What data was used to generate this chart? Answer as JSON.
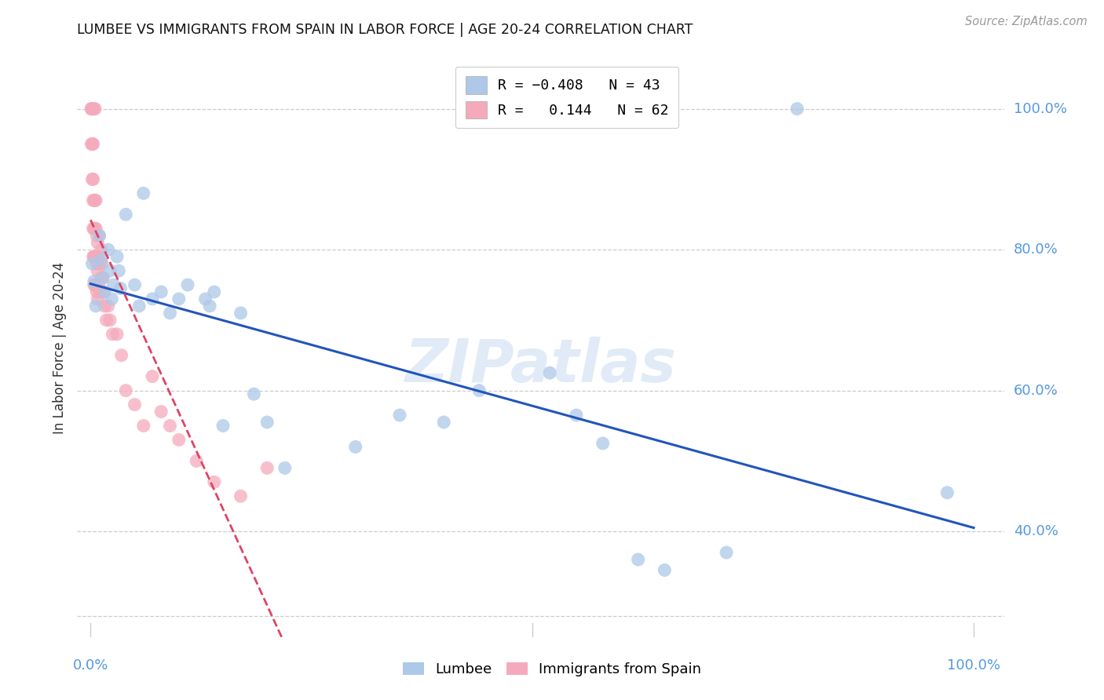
{
  "title": "LUMBEE VS IMMIGRANTS FROM SPAIN IN LABOR FORCE | AGE 20-24 CORRELATION CHART",
  "source": "Source: ZipAtlas.com",
  "ylabel": "In Labor Force | Age 20-24",
  "lumbee_R": -0.408,
  "lumbee_N": 43,
  "spain_R": 0.144,
  "spain_N": 62,
  "lumbee_color": "#adc8e8",
  "spain_color": "#f5aabb",
  "lumbee_line_color": "#2255bb",
  "spain_line_color": "#dd4466",
  "watermark": "ZIPatlas",
  "ytick_labels": [
    "40.0%",
    "60.0%",
    "80.0%",
    "100.0%"
  ],
  "ytick_values": [
    0.4,
    0.6,
    0.8,
    1.0
  ],
  "lumbee_x": [
    0.002,
    0.004,
    0.006,
    0.01,
    0.012,
    0.014,
    0.016,
    0.02,
    0.022,
    0.024,
    0.026,
    0.03,
    0.032,
    0.034,
    0.04,
    0.05,
    0.055,
    0.06,
    0.07,
    0.08,
    0.09,
    0.1,
    0.11,
    0.13,
    0.135,
    0.14,
    0.15,
    0.17,
    0.185,
    0.2,
    0.22,
    0.3,
    0.35,
    0.4,
    0.44,
    0.52,
    0.55,
    0.58,
    0.62,
    0.65,
    0.72,
    0.8,
    0.97
  ],
  "lumbee_y": [
    0.78,
    0.755,
    0.72,
    0.82,
    0.785,
    0.76,
    0.74,
    0.8,
    0.77,
    0.73,
    0.75,
    0.79,
    0.77,
    0.745,
    0.85,
    0.75,
    0.72,
    0.88,
    0.73,
    0.74,
    0.71,
    0.73,
    0.75,
    0.73,
    0.72,
    0.74,
    0.55,
    0.71,
    0.595,
    0.555,
    0.49,
    0.52,
    0.565,
    0.555,
    0.6,
    0.625,
    0.565,
    0.525,
    0.36,
    0.345,
    0.37,
    1.0,
    0.455
  ],
  "spain_x": [
    0.001,
    0.001,
    0.001,
    0.001,
    0.002,
    0.002,
    0.002,
    0.002,
    0.003,
    0.003,
    0.003,
    0.003,
    0.003,
    0.003,
    0.004,
    0.004,
    0.004,
    0.004,
    0.004,
    0.005,
    0.005,
    0.005,
    0.005,
    0.005,
    0.006,
    0.006,
    0.006,
    0.006,
    0.007,
    0.007,
    0.007,
    0.008,
    0.008,
    0.008,
    0.009,
    0.009,
    0.01,
    0.01,
    0.01,
    0.012,
    0.012,
    0.013,
    0.014,
    0.015,
    0.016,
    0.018,
    0.02,
    0.022,
    0.025,
    0.03,
    0.035,
    0.04,
    0.05,
    0.06,
    0.07,
    0.08,
    0.09,
    0.1,
    0.12,
    0.14,
    0.17,
    0.2
  ],
  "spain_y": [
    1.0,
    1.0,
    1.0,
    0.95,
    1.0,
    1.0,
    0.95,
    0.9,
    1.0,
    0.95,
    0.9,
    0.87,
    0.83,
    0.79,
    1.0,
    0.87,
    0.83,
    0.79,
    0.75,
    1.0,
    0.87,
    0.83,
    0.79,
    0.75,
    0.87,
    0.83,
    0.79,
    0.75,
    0.82,
    0.78,
    0.74,
    0.81,
    0.77,
    0.73,
    0.79,
    0.75,
    0.82,
    0.78,
    0.74,
    0.8,
    0.76,
    0.78,
    0.76,
    0.74,
    0.72,
    0.7,
    0.72,
    0.7,
    0.68,
    0.68,
    0.65,
    0.6,
    0.58,
    0.55,
    0.62,
    0.57,
    0.55,
    0.53,
    0.5,
    0.47,
    0.45,
    0.49
  ]
}
